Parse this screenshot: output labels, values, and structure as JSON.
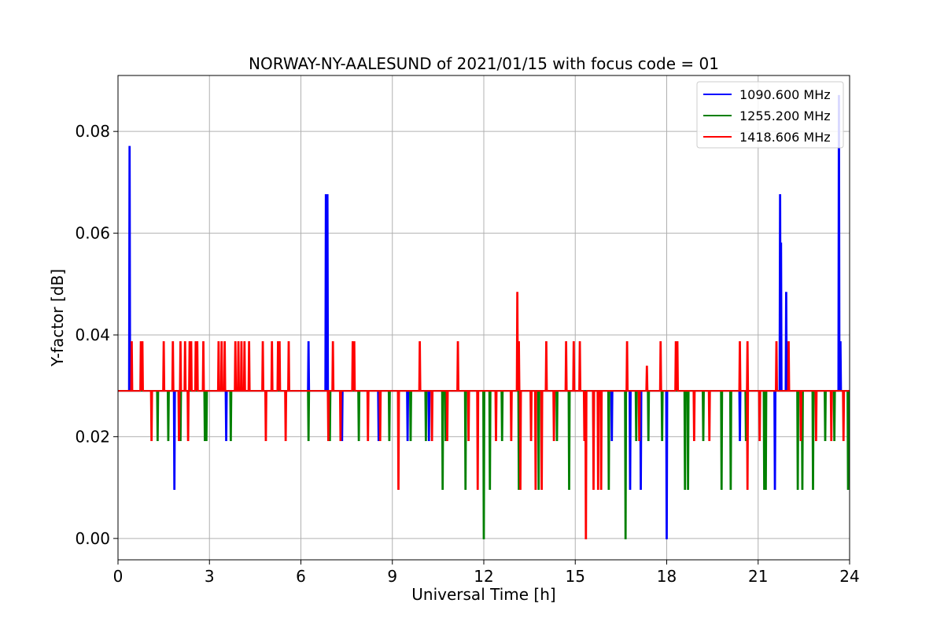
{
  "chart_data": {
    "type": "line",
    "title": "NORWAY-NY-AALESUND of 2021/01/15 with focus code = 01",
    "xlabel": "Universal Time [h]",
    "ylabel": "Y-factor [dB]",
    "xlim": [
      0,
      24
    ],
    "ylim": [
      -0.0042,
      0.091
    ],
    "xticks": [
      0,
      3,
      6,
      9,
      12,
      15,
      18,
      21,
      24
    ],
    "yticks": [
      0.0,
      0.02,
      0.04,
      0.06,
      0.08
    ],
    "xtick_labels": [
      "0",
      "3",
      "6",
      "9",
      "12",
      "15",
      "18",
      "21",
      "24"
    ],
    "ytick_labels": [
      "0.00",
      "0.02",
      "0.04",
      "0.06",
      "0.08"
    ],
    "grid": true,
    "legend_position": "top-right",
    "baseline": 0.029,
    "series": [
      {
        "name": "1090.600 MHz",
        "color": "#0000ff",
        "spikes": [
          [
            0.38,
            0.077
          ],
          [
            0.42,
            0.0386
          ],
          [
            1.85,
            0.0097
          ],
          [
            3.55,
            0.0193
          ],
          [
            6.25,
            0.0386
          ],
          [
            6.82,
            0.0675
          ],
          [
            6.87,
            0.0675
          ],
          [
            7.35,
            0.0193
          ],
          [
            8.55,
            0.0193
          ],
          [
            9.5,
            0.0193
          ],
          [
            10.2,
            0.0193
          ],
          [
            16.2,
            0.0193
          ],
          [
            16.8,
            0.0097
          ],
          [
            17.15,
            0.0097
          ],
          [
            18.0,
            0.0
          ],
          [
            20.4,
            0.0193
          ],
          [
            21.55,
            0.0097
          ],
          [
            21.72,
            0.0675
          ],
          [
            21.75,
            0.058
          ],
          [
            21.92,
            0.0483
          ],
          [
            23.65,
            0.087
          ],
          [
            23.7,
            0.0386
          ]
        ]
      },
      {
        "name": "1255.200 MHz",
        "color": "#008000",
        "spikes": [
          [
            1.3,
            0.0193
          ],
          [
            1.65,
            0.0193
          ],
          [
            2.05,
            0.0193
          ],
          [
            2.85,
            0.0193
          ],
          [
            2.9,
            0.0193
          ],
          [
            3.7,
            0.0193
          ],
          [
            6.25,
            0.0193
          ],
          [
            6.95,
            0.0193
          ],
          [
            7.9,
            0.0193
          ],
          [
            8.9,
            0.0193
          ],
          [
            9.6,
            0.0193
          ],
          [
            10.1,
            0.0193
          ],
          [
            10.65,
            0.0097
          ],
          [
            10.75,
            0.0193
          ],
          [
            11.4,
            0.0097
          ],
          [
            12.0,
            0.0
          ],
          [
            12.2,
            0.0097
          ],
          [
            12.6,
            0.0193
          ],
          [
            13.15,
            0.0097
          ],
          [
            13.8,
            0.0097
          ],
          [
            14.4,
            0.0193
          ],
          [
            14.8,
            0.0097
          ],
          [
            15.6,
            0.0193
          ],
          [
            16.1,
            0.0097
          ],
          [
            16.65,
            0.0
          ],
          [
            17.0,
            0.0193
          ],
          [
            17.4,
            0.0193
          ],
          [
            17.85,
            0.0193
          ],
          [
            18.6,
            0.0097
          ],
          [
            18.7,
            0.0097
          ],
          [
            19.2,
            0.0193
          ],
          [
            19.8,
            0.0097
          ],
          [
            20.1,
            0.0097
          ],
          [
            20.6,
            0.0193
          ],
          [
            21.2,
            0.0097
          ],
          [
            21.25,
            0.0097
          ],
          [
            22.3,
            0.0097
          ],
          [
            22.45,
            0.0097
          ],
          [
            22.8,
            0.0097
          ],
          [
            23.2,
            0.0193
          ],
          [
            23.5,
            0.0193
          ],
          [
            23.95,
            0.0097
          ]
        ]
      },
      {
        "name": "1418.606 MHz",
        "color": "#ff0000",
        "spikes": [
          [
            0.45,
            0.0386
          ],
          [
            0.75,
            0.0386
          ],
          [
            0.8,
            0.0386
          ],
          [
            1.1,
            0.0193
          ],
          [
            1.5,
            0.0386
          ],
          [
            1.8,
            0.0386
          ],
          [
            2.0,
            0.0193
          ],
          [
            2.05,
            0.0386
          ],
          [
            2.2,
            0.0386
          ],
          [
            2.3,
            0.0193
          ],
          [
            2.35,
            0.0386
          ],
          [
            2.4,
            0.0386
          ],
          [
            2.55,
            0.0386
          ],
          [
            2.6,
            0.0386
          ],
          [
            2.8,
            0.0386
          ],
          [
            3.3,
            0.0386
          ],
          [
            3.4,
            0.0386
          ],
          [
            3.5,
            0.0386
          ],
          [
            3.85,
            0.0386
          ],
          [
            3.95,
            0.0386
          ],
          [
            4.05,
            0.0386
          ],
          [
            4.15,
            0.0386
          ],
          [
            4.3,
            0.0386
          ],
          [
            4.75,
            0.0386
          ],
          [
            4.85,
            0.0193
          ],
          [
            5.05,
            0.0386
          ],
          [
            5.25,
            0.0386
          ],
          [
            5.3,
            0.0386
          ],
          [
            5.5,
            0.0193
          ],
          [
            5.6,
            0.0386
          ],
          [
            6.9,
            0.0193
          ],
          [
            7.05,
            0.0386
          ],
          [
            7.3,
            0.0193
          ],
          [
            7.7,
            0.0386
          ],
          [
            7.75,
            0.0386
          ],
          [
            8.2,
            0.0193
          ],
          [
            8.6,
            0.0193
          ],
          [
            9.2,
            0.0097
          ],
          [
            9.9,
            0.0386
          ],
          [
            10.3,
            0.0193
          ],
          [
            10.8,
            0.0193
          ],
          [
            11.15,
            0.0386
          ],
          [
            11.5,
            0.0193
          ],
          [
            11.8,
            0.0097
          ],
          [
            12.4,
            0.0193
          ],
          [
            12.9,
            0.0193
          ],
          [
            13.1,
            0.0483
          ],
          [
            13.15,
            0.0386
          ],
          [
            13.2,
            0.0097
          ],
          [
            13.55,
            0.0193
          ],
          [
            13.7,
            0.0097
          ],
          [
            13.9,
            0.0097
          ],
          [
            14.05,
            0.0386
          ],
          [
            14.3,
            0.0193
          ],
          [
            14.7,
            0.0386
          ],
          [
            14.95,
            0.0386
          ],
          [
            15.15,
            0.0386
          ],
          [
            15.3,
            0.0193
          ],
          [
            15.35,
            0.0
          ],
          [
            15.6,
            0.0097
          ],
          [
            15.75,
            0.0097
          ],
          [
            15.85,
            0.0097
          ],
          [
            16.7,
            0.0386
          ],
          [
            17.1,
            0.0193
          ],
          [
            17.35,
            0.0338
          ],
          [
            17.8,
            0.0386
          ],
          [
            18.3,
            0.0386
          ],
          [
            18.35,
            0.0386
          ],
          [
            18.9,
            0.0193
          ],
          [
            19.4,
            0.0193
          ],
          [
            20.4,
            0.0386
          ],
          [
            20.65,
            0.0097
          ],
          [
            20.65,
            0.0386
          ],
          [
            21.05,
            0.0193
          ],
          [
            21.6,
            0.0386
          ],
          [
            22.0,
            0.0386
          ],
          [
            22.4,
            0.0193
          ],
          [
            22.9,
            0.0193
          ],
          [
            23.4,
            0.0193
          ],
          [
            23.8,
            0.0193
          ]
        ]
      }
    ]
  }
}
